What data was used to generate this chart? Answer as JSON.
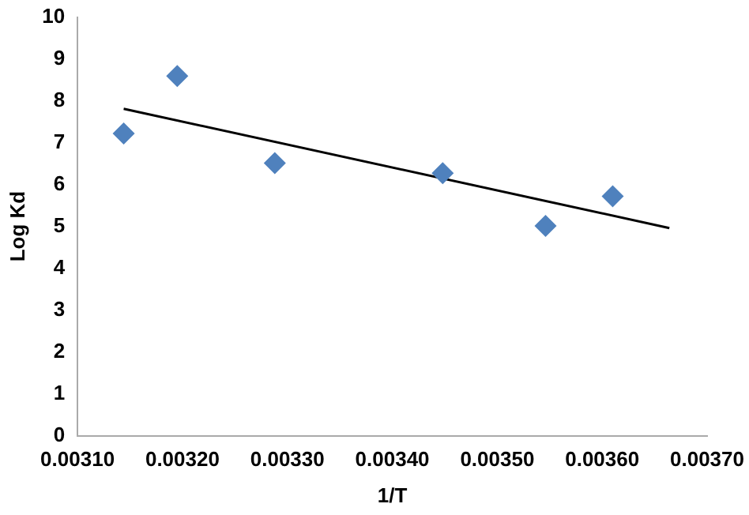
{
  "chart_data": {
    "type": "scatter",
    "xlabel": "1/T",
    "ylabel": "Log Kd",
    "x": [
      0.003144,
      0.003195,
      0.003288,
      0.003448,
      0.003546,
      0.00361
    ],
    "series": [
      {
        "type": "scatter",
        "color": "#4f81bd",
        "marker": "diamond",
        "values": [
          7.22,
          8.59,
          6.51,
          6.27,
          5.01,
          5.72
        ]
      },
      {
        "type": "line",
        "color": "#000000",
        "marker": "none",
        "x": [
          0.003144,
          0.003664
        ],
        "values": [
          7.81,
          4.96
        ]
      }
    ],
    "xlim": [
      0.0031,
      0.0037
    ],
    "xticks": [
      {
        "value": 0.0031,
        "label": "0.00310"
      },
      {
        "value": 0.0032,
        "label": "0.00320"
      },
      {
        "value": 0.0033,
        "label": "0.00330"
      },
      {
        "value": 0.0034,
        "label": "0.00340"
      },
      {
        "value": 0.0035,
        "label": "0.00350"
      },
      {
        "value": 0.0036,
        "label": "0.00360"
      },
      {
        "value": 0.0037,
        "label": "0.00370"
      }
    ],
    "ylim": [
      0,
      10
    ],
    "yticks": [
      0,
      1,
      2,
      3,
      4,
      5,
      6,
      7,
      8,
      9,
      10
    ],
    "grid": false,
    "legend": false
  }
}
